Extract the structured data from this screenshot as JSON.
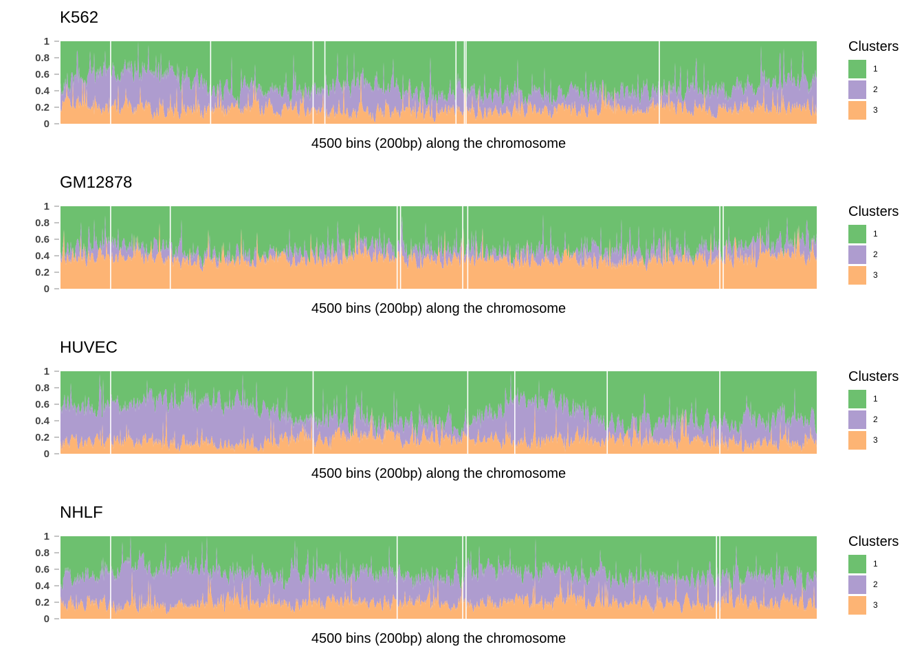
{
  "chart_data": [
    {
      "type": "area",
      "title": "K562",
      "xlabel": "4500 bins (200bp) along the chromosome",
      "ylabel": "",
      "ylim": [
        0,
        1
      ],
      "yticks": [
        "0",
        "0.2",
        "0.4",
        "0.6",
        "0.8",
        "1"
      ],
      "x_bins": 4500,
      "stacked": true,
      "legend": {
        "title": "Clusters",
        "placement": "right"
      },
      "series": [
        {
          "name": "3",
          "color": "#FDB474",
          "mean_share": 0.2
        },
        {
          "name": "2",
          "color": "#AE9CCF",
          "mean_share": 0.2
        },
        {
          "name": "1",
          "color": "#6DC06F",
          "mean_share": 0.6
        }
      ],
      "series_profile": {
        "x_bin_start": [
          0,
          300,
          600,
          900,
          1200,
          1500,
          1800,
          2100,
          2400,
          2700,
          3000,
          3300,
          3600,
          3900,
          4200
        ],
        "top_of_3": [
          0.25,
          0.2,
          0.18,
          0.15,
          0.2,
          0.15,
          0.15,
          0.12,
          0.15,
          0.18,
          0.15,
          0.18,
          0.2,
          0.18,
          0.2
        ],
        "top_of_2": [
          0.45,
          0.65,
          0.65,
          0.4,
          0.4,
          0.38,
          0.5,
          0.4,
          0.35,
          0.38,
          0.35,
          0.4,
          0.4,
          0.4,
          0.5
        ]
      },
      "gaps_x_bins": [
        295,
        890,
        1500,
        1570,
        2350,
        2400,
        2410,
        3560
      ]
    },
    {
      "type": "area",
      "title": "GM12878",
      "xlabel": "4500 bins (200bp) along the chromosome",
      "ylabel": "",
      "ylim": [
        0,
        1
      ],
      "yticks": [
        "0",
        "0.2",
        "0.4",
        "0.6",
        "0.8",
        "1"
      ],
      "x_bins": 4500,
      "stacked": true,
      "legend": {
        "title": "Clusters",
        "placement": "right"
      },
      "series": [
        {
          "name": "3",
          "color": "#FDB474",
          "mean_share": 0.35
        },
        {
          "name": "2",
          "color": "#AE9CCF",
          "mean_share": 0.1
        },
        {
          "name": "1",
          "color": "#6DC06F",
          "mean_share": 0.55
        }
      ],
      "series_profile": {
        "x_bin_start": [
          0,
          300,
          600,
          900,
          1200,
          1500,
          1800,
          2100,
          2400,
          2700,
          3000,
          3300,
          3600,
          3900,
          4200
        ],
        "top_of_3": [
          0.35,
          0.4,
          0.35,
          0.3,
          0.35,
          0.35,
          0.4,
          0.35,
          0.35,
          0.35,
          0.35,
          0.3,
          0.35,
          0.35,
          0.4
        ],
        "top_of_2": [
          0.45,
          0.55,
          0.5,
          0.4,
          0.42,
          0.45,
          0.5,
          0.45,
          0.42,
          0.45,
          0.45,
          0.4,
          0.42,
          0.45,
          0.55
        ]
      },
      "gaps_x_bins": [
        295,
        650,
        2000,
        2020,
        2390,
        2420,
        3920,
        3940
      ]
    },
    {
      "type": "area",
      "title": "HUVEC",
      "xlabel": "4500 bins (200bp) along the chromosome",
      "ylabel": "",
      "ylim": [
        0,
        1
      ],
      "yticks": [
        "0",
        "0.2",
        "0.4",
        "0.6",
        "0.8",
        "1"
      ],
      "x_bins": 4500,
      "stacked": true,
      "legend": {
        "title": "Clusters",
        "placement": "right"
      },
      "series": [
        {
          "name": "3",
          "color": "#FDB474",
          "mean_share": 0.15
        },
        {
          "name": "2",
          "color": "#AE9CCF",
          "mean_share": 0.3
        },
        {
          "name": "1",
          "color": "#6DC06F",
          "mean_share": 0.55
        }
      ],
      "series_profile": {
        "x_bin_start": [
          0,
          300,
          600,
          900,
          1200,
          1500,
          1800,
          2100,
          2400,
          2700,
          3000,
          3300,
          3600,
          3900,
          4200
        ],
        "top_of_3": [
          0.12,
          0.15,
          0.12,
          0.12,
          0.12,
          0.18,
          0.2,
          0.18,
          0.18,
          0.15,
          0.15,
          0.2,
          0.15,
          0.15,
          0.12
        ],
        "top_of_2": [
          0.55,
          0.55,
          0.65,
          0.6,
          0.55,
          0.4,
          0.4,
          0.35,
          0.35,
          0.6,
          0.6,
          0.35,
          0.35,
          0.35,
          0.4
        ]
      },
      "gaps_x_bins": [
        295,
        1500,
        2420,
        2700,
        3250,
        3920
      ]
    },
    {
      "type": "area",
      "title": "NHLF",
      "xlabel": "4500 bins (200bp) along the chromosome",
      "ylabel": "",
      "ylim": [
        0,
        1
      ],
      "yticks": [
        "0",
        "0.2",
        "0.4",
        "0.6",
        "0.8",
        "1"
      ],
      "x_bins": 4500,
      "stacked": true,
      "legend": {
        "title": "Clusters",
        "placement": "right"
      },
      "series": [
        {
          "name": "3",
          "color": "#FDB474",
          "mean_share": 0.2
        },
        {
          "name": "2",
          "color": "#AE9CCF",
          "mean_share": 0.35
        },
        {
          "name": "1",
          "color": "#6DC06F",
          "mean_share": 0.45
        }
      ],
      "series_profile": {
        "x_bin_start": [
          0,
          300,
          600,
          900,
          1200,
          1500,
          1800,
          2100,
          2400,
          2700,
          3000,
          3300,
          3600,
          3900,
          4200
        ],
        "top_of_3": [
          0.2,
          0.18,
          0.15,
          0.2,
          0.2,
          0.2,
          0.2,
          0.2,
          0.2,
          0.2,
          0.2,
          0.2,
          0.2,
          0.2,
          0.2
        ],
        "top_of_2": [
          0.45,
          0.6,
          0.6,
          0.6,
          0.55,
          0.55,
          0.55,
          0.5,
          0.55,
          0.6,
          0.55,
          0.5,
          0.5,
          0.5,
          0.5
        ]
      },
      "gaps_x_bins": [
        295,
        2000,
        2390,
        2410,
        3900,
        3920
      ]
    }
  ]
}
